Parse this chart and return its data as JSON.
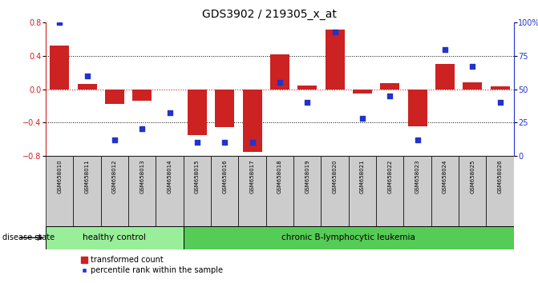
{
  "title": "GDS3902 / 219305_x_at",
  "samples": [
    "GSM658010",
    "GSM658011",
    "GSM658012",
    "GSM658013",
    "GSM658014",
    "GSM658015",
    "GSM658016",
    "GSM658017",
    "GSM658018",
    "GSM658019",
    "GSM658020",
    "GSM658021",
    "GSM658022",
    "GSM658023",
    "GSM658024",
    "GSM658025",
    "GSM658026"
  ],
  "bar_values": [
    0.52,
    0.06,
    -0.18,
    -0.14,
    0.0,
    -0.55,
    -0.46,
    -0.75,
    0.42,
    0.04,
    0.72,
    -0.05,
    0.07,
    -0.45,
    0.3,
    0.08,
    0.03
  ],
  "dot_values": [
    100,
    60,
    12,
    20,
    32,
    10,
    10,
    10,
    55,
    40,
    93,
    28,
    45,
    12,
    80,
    67,
    40
  ],
  "ylim": [
    -0.8,
    0.8
  ],
  "y2lim": [
    0,
    100
  ],
  "yticks": [
    -0.8,
    -0.4,
    0.0,
    0.4,
    0.8
  ],
  "y2ticks": [
    0,
    25,
    50,
    75,
    100
  ],
  "y2ticklabels": [
    "0",
    "25",
    "50",
    "75",
    "100%"
  ],
  "bar_color": "#CC2222",
  "dot_color": "#2233CC",
  "zero_line_color": "#CC2222",
  "grid_color": "#000000",
  "healthy_count": 5,
  "leukemia_count": 12,
  "healthy_label": "healthy control",
  "leukemia_label": "chronic B-lymphocytic leukemia",
  "disease_state_label": "disease state",
  "legend_bar_label": "transformed count",
  "legend_dot_label": "percentile rank within the sample",
  "healthy_color": "#99EE99",
  "leukemia_color": "#55CC55",
  "sample_box_color": "#CCCCCC",
  "bar_width": 0.7,
  "dot_size": 25,
  "title_fontsize": 10,
  "label_fontsize": 5,
  "axis_fontsize": 7,
  "disease_fontsize": 7.5,
  "legend_fontsize": 7
}
